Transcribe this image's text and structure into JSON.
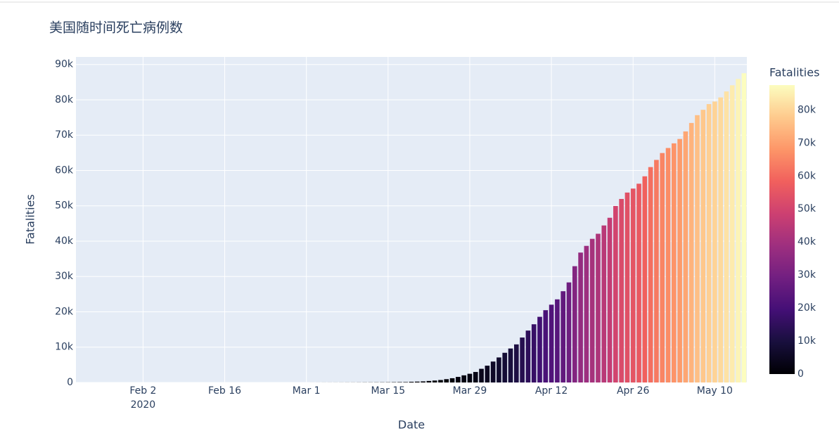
{
  "chart_data": {
    "type": "bar",
    "title": "美国随时间死亡病例数",
    "x_label": "Date",
    "y_label": "Fatalities",
    "x": [
      "2020-01-22",
      "2020-01-23",
      "2020-01-24",
      "2020-01-25",
      "2020-01-26",
      "2020-01-27",
      "2020-01-28",
      "2020-01-29",
      "2020-01-30",
      "2020-01-31",
      "2020-02-01",
      "2020-02-02",
      "2020-02-03",
      "2020-02-04",
      "2020-02-05",
      "2020-02-06",
      "2020-02-07",
      "2020-02-08",
      "2020-02-09",
      "2020-02-10",
      "2020-02-11",
      "2020-02-12",
      "2020-02-13",
      "2020-02-14",
      "2020-02-15",
      "2020-02-16",
      "2020-02-17",
      "2020-02-18",
      "2020-02-19",
      "2020-02-20",
      "2020-02-21",
      "2020-02-22",
      "2020-02-23",
      "2020-02-24",
      "2020-02-25",
      "2020-02-26",
      "2020-02-27",
      "2020-02-28",
      "2020-02-29",
      "2020-03-01",
      "2020-03-02",
      "2020-03-03",
      "2020-03-04",
      "2020-03-05",
      "2020-03-06",
      "2020-03-07",
      "2020-03-08",
      "2020-03-09",
      "2020-03-10",
      "2020-03-11",
      "2020-03-12",
      "2020-03-13",
      "2020-03-14",
      "2020-03-15",
      "2020-03-16",
      "2020-03-17",
      "2020-03-18",
      "2020-03-19",
      "2020-03-20",
      "2020-03-21",
      "2020-03-22",
      "2020-03-23",
      "2020-03-24",
      "2020-03-25",
      "2020-03-26",
      "2020-03-27",
      "2020-03-28",
      "2020-03-29",
      "2020-03-30",
      "2020-03-31",
      "2020-04-01",
      "2020-04-02",
      "2020-04-03",
      "2020-04-04",
      "2020-04-05",
      "2020-04-06",
      "2020-04-07",
      "2020-04-08",
      "2020-04-09",
      "2020-04-10",
      "2020-04-11",
      "2020-04-12",
      "2020-04-13",
      "2020-04-14",
      "2020-04-15",
      "2020-04-16",
      "2020-04-17",
      "2020-04-18",
      "2020-04-19",
      "2020-04-20",
      "2020-04-21",
      "2020-04-22",
      "2020-04-23",
      "2020-04-24",
      "2020-04-25",
      "2020-04-26",
      "2020-04-27",
      "2020-04-28",
      "2020-04-29",
      "2020-04-30",
      "2020-05-01",
      "2020-05-02",
      "2020-05-03",
      "2020-05-04",
      "2020-05-05",
      "2020-05-06",
      "2020-05-07",
      "2020-05-08",
      "2020-05-09",
      "2020-05-10",
      "2020-05-11",
      "2020-05-12",
      "2020-05-13",
      "2020-05-14",
      "2020-05-15"
    ],
    "values": [
      0,
      0,
      0,
      0,
      0,
      0,
      0,
      0,
      0,
      0,
      0,
      0,
      0,
      0,
      0,
      0,
      0,
      0,
      0,
      0,
      0,
      0,
      0,
      0,
      0,
      0,
      0,
      0,
      0,
      0,
      0,
      0,
      0,
      0,
      0,
      0,
      0,
      0,
      1,
      1,
      6,
      7,
      11,
      12,
      14,
      17,
      21,
      22,
      28,
      36,
      40,
      47,
      54,
      63,
      85,
      108,
      118,
      200,
      244,
      307,
      427,
      552,
      706,
      942,
      1209,
      1581,
      2026,
      2467,
      2978,
      3873,
      4757,
      5926,
      7087,
      8407,
      9619,
      10783,
      12722,
      14695,
      16478,
      18586,
      20463,
      22020,
      23529,
      25832,
      28325,
      32916,
      36773,
      38664,
      40661,
      42094,
      44444,
      46622,
      49954,
      51949,
      53755,
      54881,
      56259,
      58355,
      60967,
      62996,
      64943,
      66369,
      67682,
      68922,
      71064,
      73455,
      75662,
      77180,
      78795,
      79526,
      80682,
      82376,
      84119,
      85898,
      87530
    ],
    "xlim": [
      "2020-01-21T12:00:00Z",
      "2020-05-15T12:00:00Z"
    ],
    "xticks": [
      {
        "value": "2020-02-02",
        "label": "Feb 2\n2020"
      },
      {
        "value": "2020-02-16",
        "label": "Feb 16"
      },
      {
        "value": "2020-03-01",
        "label": "Mar 1"
      },
      {
        "value": "2020-03-15",
        "label": "Mar 15"
      },
      {
        "value": "2020-03-29",
        "label": "Mar 29"
      },
      {
        "value": "2020-04-12",
        "label": "Apr 12"
      },
      {
        "value": "2020-04-26",
        "label": "Apr 26"
      },
      {
        "value": "2020-05-10",
        "label": "May 10"
      }
    ],
    "ylim": [
      0,
      92138
    ],
    "yticks": [
      0,
      {
        "value": 10000,
        "label": "10k"
      },
      {
        "value": 20000,
        "label": "20k"
      },
      {
        "value": 30000,
        "label": "30k"
      },
      {
        "value": 40000,
        "label": "40k"
      },
      {
        "value": 50000,
        "label": "50k"
      },
      {
        "value": 60000,
        "label": "60k"
      },
      {
        "value": 70000,
        "label": "70k"
      },
      {
        "value": 80000,
        "label": "80k"
      },
      {
        "value": 90000,
        "label": "90k"
      }
    ],
    "grid": true,
    "colorscale": [
      "#000004",
      "#180f3d",
      "#440f76",
      "#721f81",
      "#9e2f7f",
      "#cd4071",
      "#f1605d",
      "#fd9668",
      "#feca8d",
      "#fcfdbf"
    ],
    "colorbar": {
      "title": "Fatalities",
      "ticks": [
        0,
        {
          "value": 10000,
          "label": "10k"
        },
        {
          "value": 20000,
          "label": "20k"
        },
        {
          "value": 30000,
          "label": "30k"
        },
        {
          "value": 40000,
          "label": "40k"
        },
        {
          "value": 50000,
          "label": "50k"
        },
        {
          "value": 60000,
          "label": "60k"
        },
        {
          "value": 70000,
          "label": "70k"
        },
        {
          "value": 80000,
          "label": "80k"
        }
      ]
    }
  }
}
